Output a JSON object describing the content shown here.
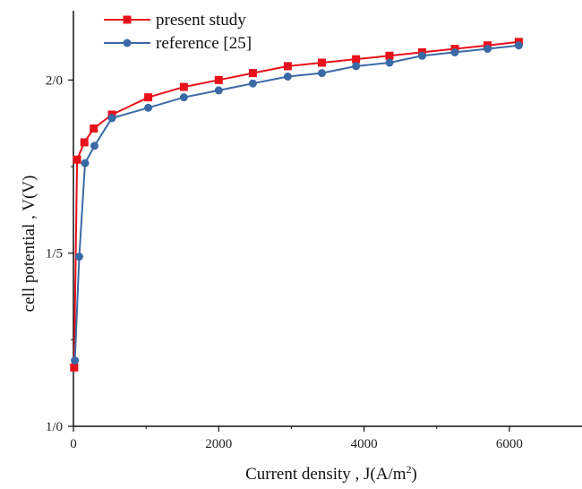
{
  "chart_data": {
    "type": "line",
    "xlabel": "Current density , J(A/m",
    "xlabel_superscript": "2",
    "xlabel_suffix": ")",
    "ylabel": "cell potential , V(V)",
    "xlim": [
      0,
      7000
    ],
    "ylim": [
      1.0,
      2.2
    ],
    "x_ticks": [
      0,
      2000,
      4000,
      6000
    ],
    "x_tick_labels": [
      "0",
      "2000",
      "4000",
      "6000"
    ],
    "y_ticks": [
      1.0,
      1.5,
      2.0
    ],
    "y_tick_labels": [
      "1/0",
      "1/5",
      "2/0"
    ],
    "legend_position": "top-left",
    "series": [
      {
        "name": "present study",
        "color": "#e8101a",
        "marker": "square",
        "x": [
          10,
          50,
          150,
          280,
          530,
          1030,
          1520,
          2000,
          2470,
          2950,
          3420,
          3890,
          4350,
          4800,
          5250,
          5700,
          6130
        ],
        "y": [
          1.17,
          1.77,
          1.82,
          1.86,
          1.9,
          1.95,
          1.98,
          2.0,
          2.02,
          2.04,
          2.05,
          2.06,
          2.07,
          2.08,
          2.09,
          2.1,
          2.11
        ]
      },
      {
        "name": "reference [25]",
        "color": "#3a6aa5",
        "marker": "circle",
        "x": [
          20,
          80,
          160,
          290,
          530,
          1030,
          1520,
          2000,
          2470,
          2950,
          3420,
          3890,
          4350,
          4800,
          5250,
          5700,
          6130
        ],
        "y": [
          1.19,
          1.49,
          1.76,
          1.81,
          1.89,
          1.92,
          1.95,
          1.97,
          1.99,
          2.01,
          2.02,
          2.04,
          2.05,
          2.07,
          2.08,
          2.09,
          2.1
        ]
      }
    ]
  }
}
